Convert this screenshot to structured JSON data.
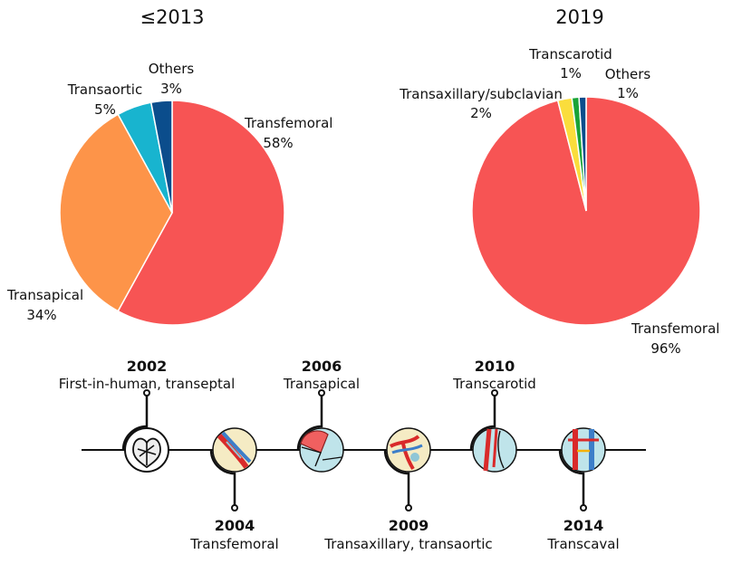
{
  "chart_data": [
    {
      "type": "pie",
      "title": "≤2013",
      "slices": [
        {
          "label": "Transfemoral",
          "value": 58,
          "pct": "58%",
          "color": "#F75454"
        },
        {
          "label": "Transapical",
          "value": 34,
          "pct": "34%",
          "color": "#FD9449"
        },
        {
          "label": "Transaortic",
          "value": 5,
          "pct": "5%",
          "color": "#18B4CF"
        },
        {
          "label": "Others",
          "value": 3,
          "pct": "3%",
          "color": "#0B4D8C"
        }
      ]
    },
    {
      "type": "pie",
      "title": "2019",
      "slices": [
        {
          "label": "Transfemoral",
          "value": 96,
          "pct": "96%",
          "color": "#F75454"
        },
        {
          "label": "Transaxillary/subclavian",
          "value": 2,
          "pct": "2%",
          "color": "#FADD3C"
        },
        {
          "label": "Transcarotid",
          "value": 1,
          "pct": "1%",
          "color": "#19A337"
        },
        {
          "label": "Others",
          "value": 1,
          "pct": "1%",
          "color": "#0B4D8C"
        }
      ]
    }
  ],
  "timeline": {
    "events": [
      {
        "year": "2002",
        "label": "First-in-human, transeptal",
        "icon": "heart-septum-icon"
      },
      {
        "year": "2004",
        "label": "Transfemoral",
        "icon": "femoral-artery-icon"
      },
      {
        "year": "2006",
        "label": "Transapical",
        "icon": "apical-heart-icon"
      },
      {
        "year": "2009",
        "label": "Transaxillary, transaortic",
        "icon": "axillary-artery-icon"
      },
      {
        "year": "2010",
        "label": "Transcarotid",
        "icon": "carotid-artery-icon"
      },
      {
        "year": "2014",
        "label": "Transcaval",
        "icon": "caval-vessels-icon"
      }
    ]
  }
}
